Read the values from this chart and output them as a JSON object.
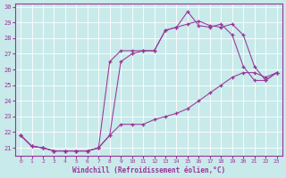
{
  "xlabel": "Windchill (Refroidissement éolien,°C)",
  "background_color": "#c8eaea",
  "line_color": "#993399",
  "xlim": [
    -0.5,
    23.5
  ],
  "ylim": [
    20.5,
    30.2
  ],
  "yticks": [
    21,
    22,
    23,
    24,
    25,
    26,
    27,
    28,
    29,
    30
  ],
  "xticks": [
    0,
    1,
    2,
    3,
    4,
    5,
    6,
    7,
    8,
    9,
    10,
    11,
    12,
    13,
    14,
    15,
    16,
    17,
    18,
    19,
    20,
    21,
    22,
    23
  ],
  "line1_x": [
    0,
    1,
    2,
    3,
    4,
    5,
    6,
    7,
    8,
    9,
    10,
    11,
    12,
    13,
    14,
    15,
    16,
    17,
    18,
    19,
    20,
    21,
    22,
    23
  ],
  "line1_y": [
    21.8,
    21.1,
    21.0,
    20.8,
    20.8,
    20.8,
    20.8,
    21.0,
    21.8,
    26.5,
    27.0,
    27.2,
    27.2,
    28.5,
    28.7,
    28.9,
    29.1,
    28.8,
    28.7,
    28.9,
    28.2,
    26.2,
    25.3,
    25.8
  ],
  "line2_x": [
    0,
    1,
    2,
    3,
    4,
    5,
    6,
    7,
    8,
    9,
    10,
    11,
    12,
    13,
    14,
    15,
    16,
    17,
    18,
    19,
    20,
    21,
    22,
    23
  ],
  "line2_y": [
    21.8,
    21.1,
    21.0,
    20.8,
    20.8,
    20.8,
    20.8,
    21.0,
    26.5,
    27.2,
    27.2,
    27.2,
    27.2,
    28.5,
    28.7,
    29.7,
    28.8,
    28.7,
    28.9,
    28.2,
    26.2,
    25.3,
    25.3,
    25.8
  ],
  "line3_x": [
    0,
    1,
    2,
    3,
    4,
    5,
    6,
    7,
    8,
    9,
    10,
    11,
    12,
    13,
    14,
    15,
    16,
    17,
    18,
    19,
    20,
    21,
    22,
    23
  ],
  "line3_y": [
    21.8,
    21.1,
    21.0,
    20.8,
    20.8,
    20.8,
    20.8,
    21.0,
    21.8,
    22.5,
    22.5,
    22.5,
    22.8,
    23.0,
    23.2,
    23.5,
    24.0,
    24.5,
    25.0,
    25.5,
    25.8,
    25.8,
    25.5,
    25.8
  ]
}
